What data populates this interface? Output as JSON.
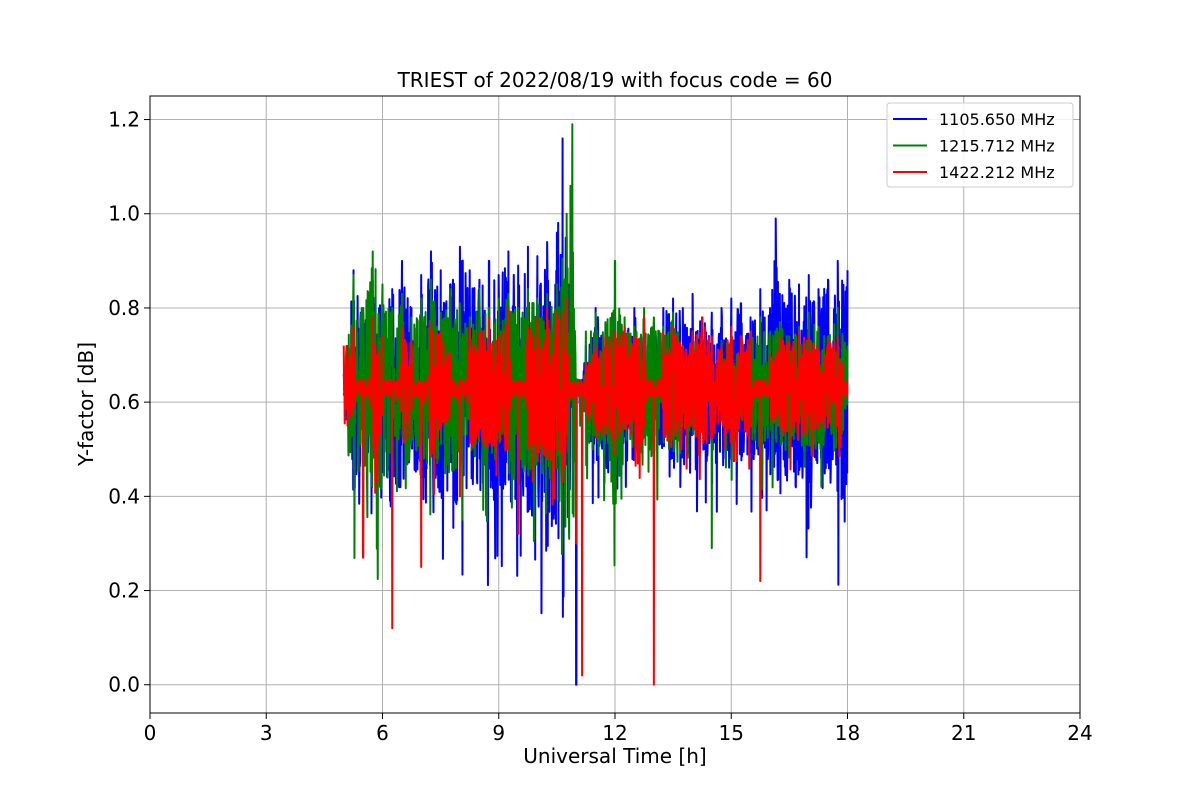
{
  "chart_data": {
    "type": "line",
    "title": "TRIEST of 2022/08/19 with focus code = 60",
    "xlabel": "Universal Time [h]",
    "ylabel": "Y-factor [dB]",
    "xlim": [
      0,
      24
    ],
    "ylim": [
      -0.06,
      1.25
    ],
    "xticks": [
      0,
      3,
      6,
      9,
      12,
      15,
      18,
      21,
      24
    ],
    "xtick_labels": [
      "0",
      "3",
      "6",
      "9",
      "12",
      "15",
      "18",
      "21",
      "24"
    ],
    "yticks": [
      0.0,
      0.2,
      0.4,
      0.6,
      0.8,
      1.0,
      1.2
    ],
    "ytick_labels": [
      "0.0",
      "0.2",
      "0.4",
      "0.6",
      "0.8",
      "1.0",
      "1.2"
    ],
    "grid": true,
    "legend_position": "top-right",
    "series": [
      {
        "name": "1105.650 MHz",
        "color": "#0000ff",
        "x": [
          5.0,
          5.25,
          5.5,
          5.75,
          6.0,
          6.25,
          6.5,
          6.75,
          7.0,
          7.25,
          7.5,
          7.75,
          8.0,
          8.25,
          8.5,
          8.75,
          9.0,
          9.25,
          9.5,
          9.75,
          10.0,
          10.25,
          10.5,
          10.65,
          10.75,
          10.9,
          11.0,
          11.1,
          11.25,
          11.5,
          11.75,
          12.0,
          12.25,
          12.5,
          12.75,
          13.0,
          13.25,
          13.5,
          13.75,
          14.0,
          14.25,
          14.5,
          14.75,
          15.0,
          15.25,
          15.5,
          15.75,
          16.0,
          16.15,
          16.25,
          16.5,
          16.75,
          17.0,
          17.25,
          17.5,
          17.75,
          18.0
        ],
        "y": [
          0.66,
          0.88,
          0.78,
          0.86,
          0.82,
          0.84,
          0.9,
          0.8,
          0.87,
          0.92,
          0.88,
          0.85,
          0.93,
          0.88,
          0.86,
          0.9,
          0.87,
          0.92,
          0.89,
          0.93,
          0.91,
          0.94,
          0.96,
          1.16,
          0.95,
          0.86,
          0.0,
          0.6,
          0.72,
          0.8,
          0.75,
          0.78,
          0.76,
          0.8,
          0.74,
          0.74,
          0.8,
          0.82,
          0.8,
          0.83,
          0.78,
          0.79,
          0.8,
          0.82,
          0.81,
          0.78,
          0.84,
          0.8,
          0.99,
          0.83,
          0.86,
          0.85,
          0.87,
          0.84,
          0.86,
          0.9,
          0.88
        ]
      },
      {
        "name": "1215.712 MHz",
        "color": "#008000",
        "x": [
          5.0,
          5.25,
          5.5,
          5.75,
          6.0,
          6.25,
          6.5,
          6.75,
          7.0,
          7.25,
          7.5,
          7.75,
          8.0,
          8.25,
          8.5,
          8.75,
          9.0,
          9.25,
          9.5,
          9.75,
          10.0,
          10.25,
          10.5,
          10.75,
          10.9,
          11.0,
          11.1,
          11.25,
          11.5,
          11.75,
          12.0,
          12.25,
          12.5,
          12.75,
          13.0,
          13.25,
          13.5,
          13.75,
          14.0,
          14.25,
          14.5,
          14.75,
          15.0,
          15.25,
          15.5,
          15.75,
          16.0,
          16.25,
          16.5,
          16.75,
          17.0,
          17.25,
          17.5,
          17.75,
          18.0
        ],
        "y": [
          0.62,
          0.87,
          0.8,
          0.92,
          0.85,
          0.8,
          0.83,
          0.78,
          0.82,
          0.86,
          0.79,
          0.84,
          0.81,
          0.78,
          0.84,
          0.8,
          0.82,
          0.83,
          0.8,
          0.84,
          0.82,
          0.83,
          0.85,
          1.0,
          1.19,
          0.6,
          0.55,
          0.75,
          0.79,
          0.77,
          0.9,
          0.78,
          0.76,
          0.8,
          0.78,
          0.76,
          0.79,
          0.72,
          0.75,
          0.7,
          0.29,
          0.73,
          0.75,
          0.7,
          0.74,
          0.78,
          0.75,
          0.77,
          0.74,
          0.76,
          0.79,
          0.76,
          0.74,
          0.8,
          0.72
        ]
      },
      {
        "name": "1422.212 MHz",
        "color": "#ff0000",
        "x": [
          5.0,
          5.25,
          5.5,
          5.75,
          6.0,
          6.25,
          6.5,
          6.75,
          7.0,
          7.25,
          7.5,
          7.75,
          8.0,
          8.25,
          8.5,
          8.75,
          9.0,
          9.25,
          9.5,
          9.75,
          10.0,
          10.25,
          10.5,
          10.75,
          11.0,
          11.15,
          11.25,
          11.5,
          11.75,
          12.0,
          12.25,
          12.5,
          12.75,
          13.0,
          13.25,
          13.5,
          13.75,
          14.0,
          14.25,
          14.5,
          14.75,
          15.0,
          15.25,
          15.5,
          15.75,
          16.0,
          16.25,
          16.5,
          16.75,
          17.0,
          17.25,
          17.5,
          17.75,
          18.0
        ],
        "y": [
          0.72,
          0.76,
          0.27,
          0.78,
          0.74,
          0.12,
          0.76,
          0.73,
          0.25,
          0.77,
          0.75,
          0.7,
          0.4,
          0.76,
          0.75,
          0.78,
          0.74,
          0.8,
          0.32,
          0.76,
          0.78,
          0.8,
          0.79,
          0.82,
          0.3,
          0.02,
          0.68,
          0.72,
          0.74,
          0.75,
          0.76,
          0.74,
          0.78,
          0.0,
          0.75,
          0.76,
          0.72,
          0.75,
          0.78,
          0.74,
          0.72,
          0.76,
          0.74,
          0.75,
          0.22,
          0.7,
          0.74,
          0.73,
          0.75,
          0.74,
          0.72,
          0.73,
          0.74,
          0.62
        ]
      }
    ]
  }
}
